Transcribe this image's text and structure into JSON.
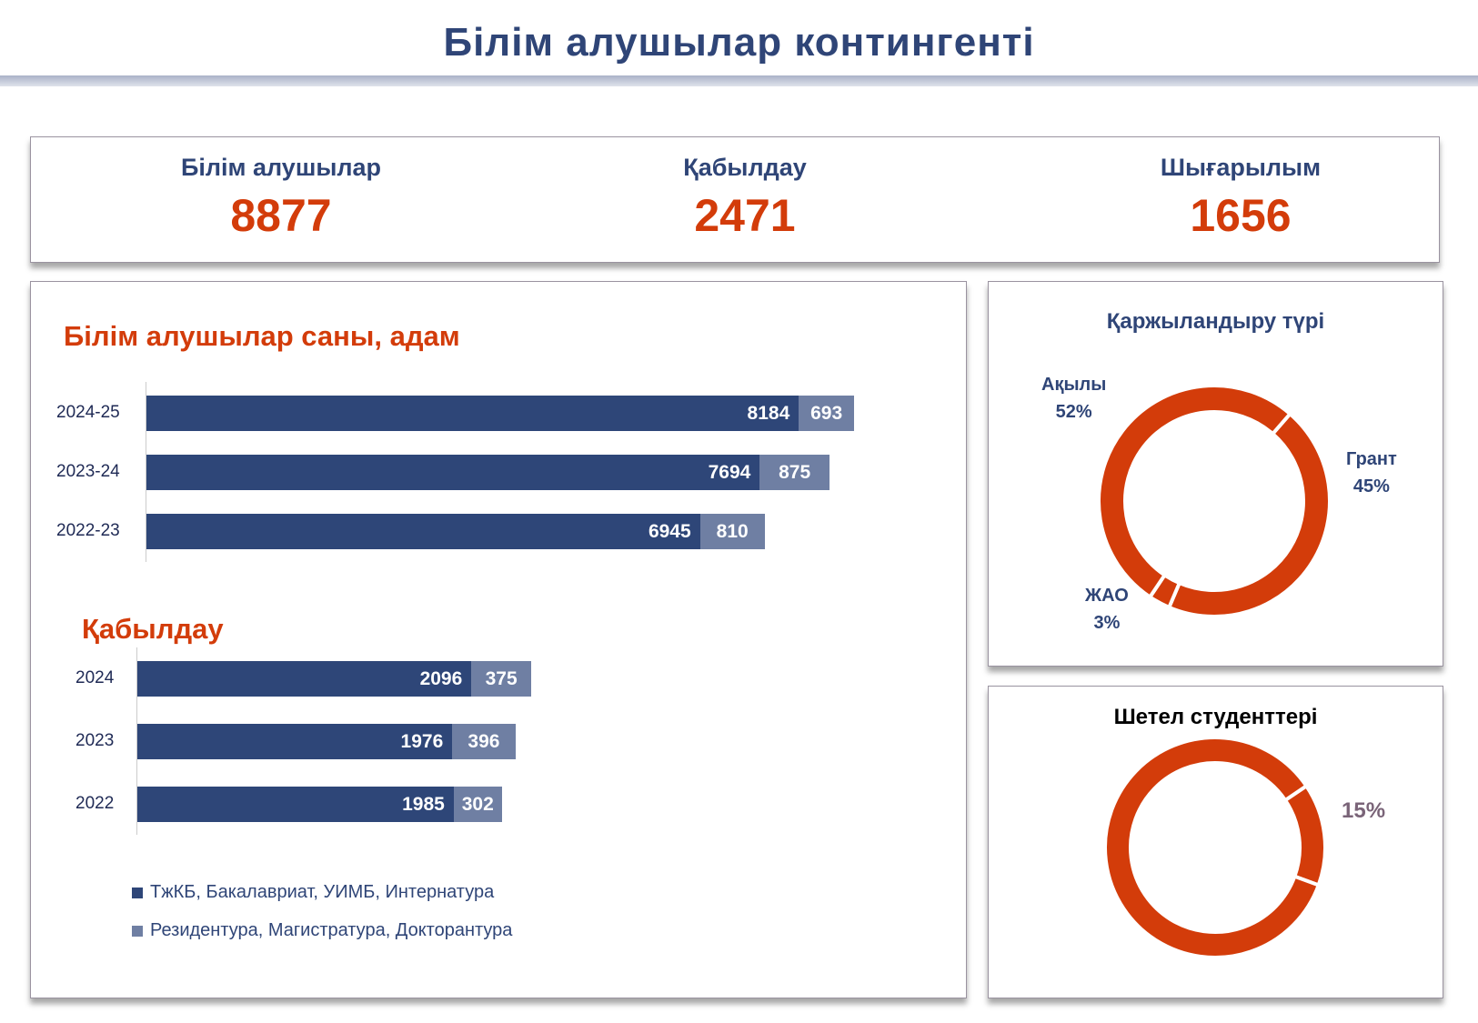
{
  "title": "Білім алушылар контингенті",
  "kpis": [
    {
      "label": "Білім алушылар",
      "value": "8877"
    },
    {
      "label": "Қабылдау",
      "value": "2471"
    },
    {
      "label": "Шығарылым",
      "value": "1656"
    }
  ],
  "colors": {
    "primary": "#2E4678",
    "secondary": "#6F7FA3",
    "accent": "#D33C0A"
  },
  "chart_data": [
    {
      "type": "bar",
      "orientation": "horizontal",
      "stacked": true,
      "title": "Білім алушылар саны, адам",
      "categories": [
        "2024-25",
        "2023-24",
        "2022-23"
      ],
      "series": [
        {
          "name": "ТжКБ, Бакалавриат, УИМБ, Интернатура",
          "values": [
            8184,
            7694,
            6945
          ]
        },
        {
          "name": "Резидентура, Магистратура, Докторантура",
          "values": [
            693,
            875,
            810
          ]
        }
      ]
    },
    {
      "type": "bar",
      "orientation": "horizontal",
      "stacked": true,
      "title": "Қабылдау",
      "categories": [
        "2024",
        "2023",
        "2022"
      ],
      "series": [
        {
          "name": "ТжКБ, Бакалавриат, УИМБ, Интернатура",
          "values": [
            2096,
            1976,
            1985
          ]
        },
        {
          "name": "Резидентура, Магистратура, Докторантура",
          "values": [
            375,
            396,
            302
          ]
        }
      ]
    },
    {
      "type": "pie",
      "donut": true,
      "title": "Қаржыландыру түрі",
      "slices": [
        {
          "label": "Грант",
          "value": 45,
          "text": "45%"
        },
        {
          "label": "ЖАО",
          "value": 3,
          "text": "3%"
        },
        {
          "label": "Ақылы",
          "value": 52,
          "text": "52%"
        }
      ]
    },
    {
      "type": "pie",
      "donut": true,
      "title": "Шетел студенттері",
      "slices": [
        {
          "label": "",
          "value": 15,
          "text": "15%"
        },
        {
          "label": "",
          "value": 85
        }
      ]
    }
  ],
  "legend": [
    "ТжКБ, Бакалавриат, УИМБ, Интернатура",
    "Резидентура, Магистратура, Докторантура"
  ]
}
